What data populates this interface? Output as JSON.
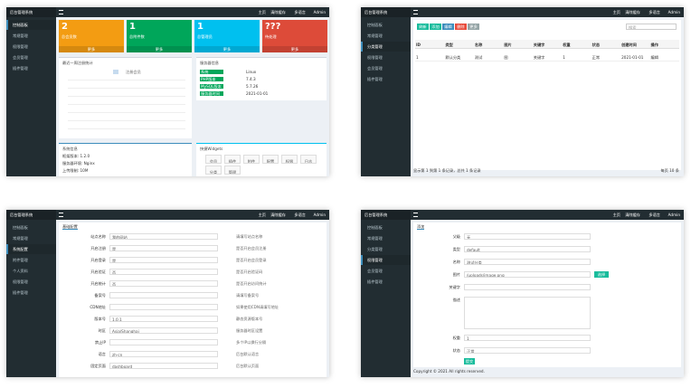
{
  "panels": [
    {
      "brand": "后台管理系统",
      "menu": [
        "控制面板",
        "常规管理",
        "权限管理",
        "会员管理",
        "插件管理"
      ],
      "active": 0,
      "top": [
        "主页",
        "清除缓存",
        "多语言",
        "Admin"
      ],
      "stats": [
        {
          "value": "2",
          "label": "总会员数",
          "color": "#f39c12",
          "more": "更多"
        },
        {
          "value": "1",
          "label": "总附件数",
          "color": "#00a65a",
          "more": "更多"
        },
        {
          "value": "1",
          "label": "总管理员",
          "color": "#00c0ef",
          "more": "更多"
        },
        {
          "value": "???",
          "label": "待处理",
          "color": "#dd4b39",
          "more": "更多"
        }
      ],
      "chart": {
        "title": "最近一周注册统计",
        "legend": "注册会员"
      },
      "server": {
        "title": "服务器信息",
        "rows": [
          [
            "系统",
            "Linux"
          ],
          [
            "PHP版本",
            "7.4.3"
          ],
          [
            "MySQL版本",
            "5.7.26"
          ],
          [
            "服务器时间",
            "2021-01-01"
          ]
        ]
      },
      "system": {
        "title": "系统信息",
        "rows": [
          "框架版本: 1.2.0",
          "服务器环境: Nginx",
          "上传限制: 10M"
        ]
      },
      "widgets": {
        "title": "快捷Widgets",
        "items": [
          "会员",
          "插件",
          "附件",
          "配置",
          "权限",
          "日志",
          "分类",
          "管理"
        ]
      }
    },
    {
      "brand": "后台管理系统",
      "menu": [
        "控制面板",
        "常规管理",
        "分类管理",
        "权限管理",
        "会员管理",
        "插件管理"
      ],
      "active": 2,
      "top": [
        "主页",
        "清除缓存",
        "多语言",
        "Admin"
      ],
      "toolbar": [
        "刷新",
        "添加",
        "编辑",
        "删除",
        "更多"
      ],
      "search": "搜索",
      "columns": [
        "ID",
        "类型",
        "名称",
        "图片",
        "关键字",
        "权重",
        "状态",
        "创建时间",
        "操作"
      ],
      "row": [
        "1",
        "默认分类",
        "测试",
        "图",
        "关键字",
        "1",
        "正常",
        "2021-01-01",
        "编辑"
      ],
      "footer": "显示第 1 到第 1 条记录，总共 1 条记录",
      "page": "每页 10 条"
    },
    {
      "brand": "后台管理系统",
      "menu": [
        "控制面板",
        "常规管理",
        "系统配置",
        "附件管理",
        "个人资料",
        "权限管理",
        "插件管理"
      ],
      "active": 2,
      "top": [
        "主页",
        "清除缓存",
        "多语言",
        "Admin"
      ],
      "tab": "基础配置",
      "rows": [
        [
          "站点名称",
          "我的网站",
          "请填写站点名称"
        ],
        [
          "开启注册",
          "是",
          "是否开启会员注册"
        ],
        [
          "开启登录",
          "是",
          "是否开启会员登录"
        ],
        [
          "开启验证",
          "否",
          "是否开启验证码"
        ],
        [
          "开启统计",
          "否",
          "是否开启访问统计"
        ],
        [
          "备案号",
          "",
          "请填写备案号"
        ],
        [
          "CDN地址",
          "",
          "如果使用CDN请填写地址"
        ],
        [
          "版本号",
          "1.0.1",
          "静态资源版本号"
        ],
        [
          "时区",
          "Asia/Shanghai",
          "服务器时区设置"
        ],
        [
          "禁止IP",
          "",
          "多个IP以换行分隔"
        ],
        [
          "语言",
          "zh-cn",
          "后台默认语言"
        ],
        [
          "固定页面",
          "dashboard",
          "后台默认页面"
        ]
      ]
    },
    {
      "brand": "后台管理系统",
      "menu": [
        "控制面板",
        "常规管理",
        "分类管理",
        "权限管理",
        "会员管理",
        "插件管理"
      ],
      "active": 3,
      "top": [
        "主页",
        "清除缓存",
        "多语言",
        "Admin"
      ],
      "tab": "添加",
      "rows": [
        [
          "父级",
          "无"
        ],
        [
          "类型",
          "default"
        ],
        [
          "名称",
          "测试分类"
        ],
        [
          "图片",
          "/uploads/image.png"
        ],
        [
          "关键字",
          ""
        ],
        [
          "描述",
          ""
        ],
        [
          "权重",
          "1"
        ],
        [
          "状态",
          "正常"
        ]
      ],
      "button": "选择",
      "submit": "提交",
      "footer": "Copyright © 2021 All rights reserved."
    }
  ]
}
